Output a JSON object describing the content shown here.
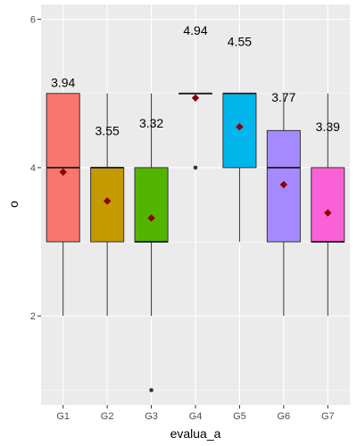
{
  "chart_data": {
    "type": "boxplot",
    "xlabel": "evalua_a",
    "ylabel": "o",
    "ylim": [
      0.8,
      6.2
    ],
    "yticks": [
      2,
      4,
      6
    ],
    "grid": true,
    "legend": "none",
    "panel_bg": "#ebebeb",
    "grid_color": "#ffffff",
    "mean_marker_color": "#8b0000",
    "categories": [
      "G1",
      "G2",
      "G3",
      "G4",
      "G5",
      "G6",
      "G7"
    ],
    "groups": [
      {
        "name": "G1",
        "color": "#f8766d",
        "min": 2,
        "q1": 3,
        "median": 4,
        "q3": 5,
        "max": 5,
        "mean": 3.94,
        "mean_label": "3.94",
        "outliers": []
      },
      {
        "name": "G2",
        "color": "#c49a00",
        "min": 2,
        "q1": 3,
        "median": 4,
        "q3": 4,
        "max": 5,
        "mean": 3.55,
        "mean_label": "3.55",
        "outliers": []
      },
      {
        "name": "G3",
        "color": "#53b400",
        "min": 2,
        "q1": 3,
        "median": 3,
        "q3": 4,
        "max": 5,
        "mean": 3.32,
        "mean_label": "3.32",
        "outliers": [
          1
        ]
      },
      {
        "name": "G4",
        "color": "#00c094",
        "min": 5,
        "q1": 5,
        "median": 5,
        "q3": 5,
        "max": 5,
        "mean": 4.94,
        "mean_label": "4.94",
        "outliers": [
          4
        ]
      },
      {
        "name": "G5",
        "color": "#00b6eb",
        "min": 3,
        "q1": 4,
        "median": 5,
        "q3": 5,
        "max": 5,
        "mean": 4.55,
        "mean_label": "4.55",
        "outliers": []
      },
      {
        "name": "G6",
        "color": "#a58aff",
        "min": 2,
        "q1": 3,
        "median": 4,
        "q3": 4.5,
        "max": 5,
        "mean": 3.77,
        "mean_label": "3.77",
        "outliers": []
      },
      {
        "name": "G7",
        "color": "#fb61d7",
        "min": 2,
        "q1": 3,
        "median": 3,
        "q3": 4,
        "max": 5,
        "mean": 3.39,
        "mean_label": "3.39",
        "outliers": []
      }
    ]
  }
}
